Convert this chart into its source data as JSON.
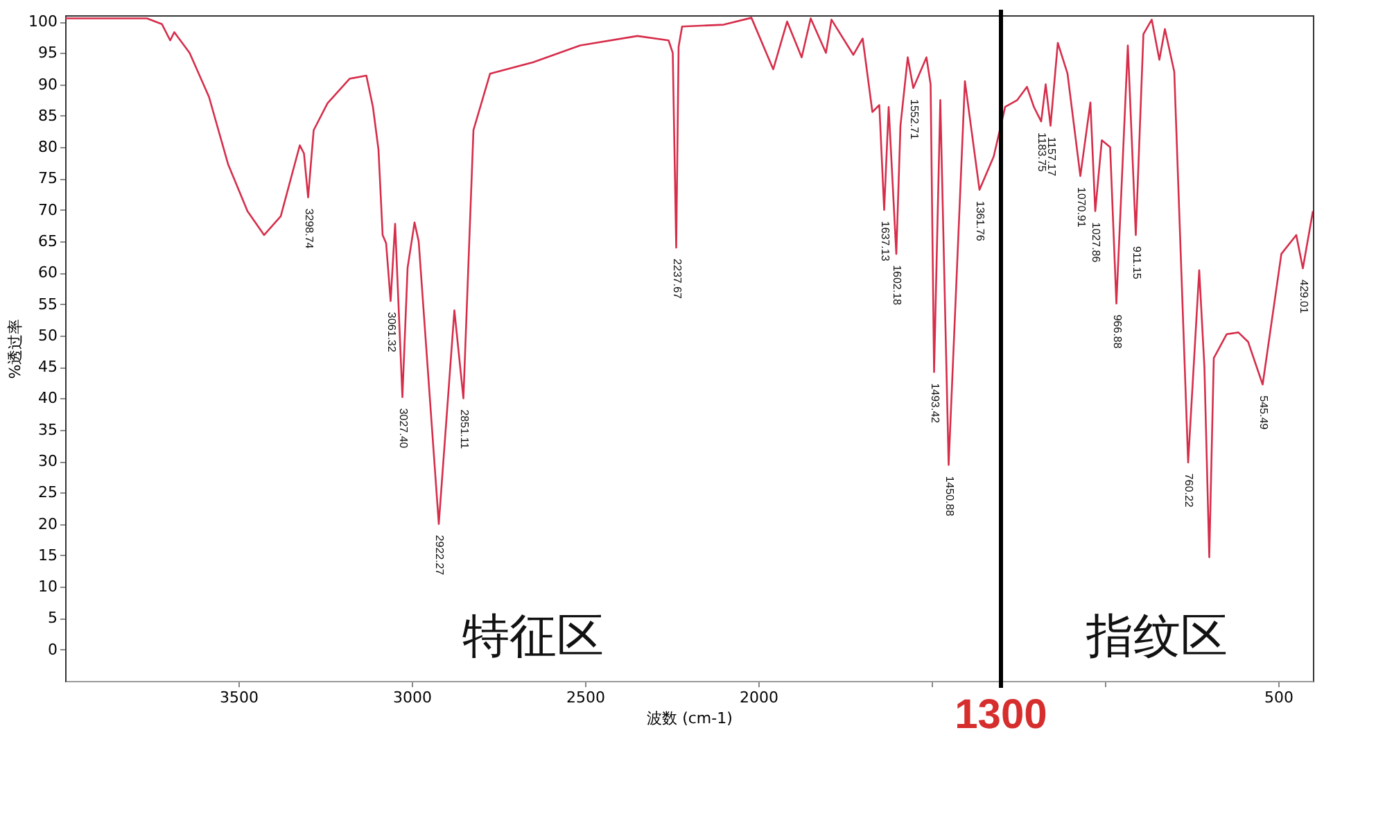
{
  "chart_data": {
    "type": "line",
    "xlabel": "波数 (cm-1)",
    "ylabel": "%透过率",
    "xlim": [
      4000,
      400
    ],
    "ylim": [
      -5,
      101
    ],
    "xticks": [
      3500,
      3000,
      2500,
      2000,
      {
        "value": 1500,
        "label": null
      },
      {
        "value": 1000,
        "label": null
      },
      500
    ],
    "yticks": [
      0,
      5,
      10,
      15,
      20,
      25,
      30,
      35,
      40,
      45,
      50,
      55,
      60,
      65,
      70,
      75,
      80,
      85,
      90,
      95,
      100
    ],
    "grid": false,
    "series": [
      {
        "color": "#d62d4a",
        "x": [
          4000,
          3764,
          3721,
          3697,
          3685,
          3641,
          3585,
          3530,
          3474,
          3426,
          3378,
          3323,
          3311,
          3299,
          3283,
          3243,
          3179,
          3131,
          3112,
          3096,
          3084,
          3074,
          3061,
          3048,
          3027,
          3012,
          2992,
          2980,
          2922,
          2877,
          2851,
          2822,
          2774,
          2651,
          2514,
          2349,
          2259,
          2247,
          2237,
          2230,
          2220,
          2100,
          2020,
          1957,
          1917,
          1875,
          1849,
          1805,
          1789,
          1726,
          1699,
          1671,
          1651,
          1637,
          1624,
          1602,
          1590,
          1569,
          1553,
          1515,
          1503,
          1493,
          1475,
          1451,
          1404,
          1362,
          1321,
          1288,
          1253,
          1225,
          1205,
          1184,
          1171,
          1157,
          1136,
          1108,
          1071,
          1042,
          1028,
          1009,
          985,
          967,
          934,
          911,
          889,
          865,
          843,
          827,
          800,
          760,
          728,
          713,
          699,
          686,
          649,
          615,
          587,
          545,
          491,
          448,
          429,
          400
        ],
        "values": [
          100.5,
          100.5,
          99.6,
          97,
          98.3,
          95,
          88,
          77.3,
          69.8,
          66,
          69,
          80.3,
          79,
          72,
          82.7,
          87,
          90.9,
          91.4,
          86.4,
          79.6,
          66,
          64.7,
          55.5,
          67.8,
          40.2,
          60.8,
          68,
          65,
          20,
          54,
          40,
          82.7,
          91.7,
          93.5,
          96.2,
          97.7,
          97,
          95,
          64,
          96,
          99.2,
          99.5,
          100.6,
          92.4,
          100,
          94.3,
          100.5,
          95,
          100.3,
          94.7,
          97.3,
          85.6,
          86.7,
          70,
          86.4,
          63,
          83.4,
          94.3,
          89.4,
          94.3,
          90,
          44.2,
          87.5,
          29.4,
          90.5,
          73.2,
          78.5,
          86.4,
          87.5,
          89.6,
          86.4,
          84.1,
          90,
          83.4,
          96.6,
          91.7,
          75.4,
          87.1,
          69.8,
          81.1,
          80,
          55.1,
          96.2,
          66,
          98,
          100.3,
          93.9,
          98.8,
          92,
          29.8,
          60.4,
          44.9,
          14.7,
          46.4,
          50.2,
          50.5,
          49,
          42.2,
          63,
          66,
          60.7,
          69.8
        ]
      }
    ],
    "annotations": [
      {
        "text": "3298.74",
        "x": 3299,
        "y": 72
      },
      {
        "text": "3061.32",
        "x": 3061,
        "y": 55.5
      },
      {
        "text": "3027.40",
        "x": 3027,
        "y": 40.2
      },
      {
        "text": "2922.27",
        "x": 2922,
        "y": 20
      },
      {
        "text": "2851.11",
        "x": 2851,
        "y": 40
      },
      {
        "text": "2237.67",
        "x": 2237,
        "y": 64
      },
      {
        "text": "1637.13",
        "x": 1637,
        "y": 70
      },
      {
        "text": "1602.18",
        "x": 1602,
        "y": 63
      },
      {
        "text": "1552.71",
        "x": 1553,
        "y": 89.4
      },
      {
        "text": "1493.42",
        "x": 1493,
        "y": 44.2
      },
      {
        "text": "1450.88",
        "x": 1451,
        "y": 29.4
      },
      {
        "text": "1361.76",
        "x": 1362,
        "y": 73.2
      },
      {
        "text": "1183.75",
        "x": 1184,
        "y": 84.1
      },
      {
        "text": "1157.17",
        "x": 1157,
        "y": 83.4
      },
      {
        "text": "1070.91",
        "x": 1071,
        "y": 75.4
      },
      {
        "text": "1027.86",
        "x": 1028,
        "y": 69.8
      },
      {
        "text": "966.88",
        "x": 967,
        "y": 55.1
      },
      {
        "text": "911.15",
        "x": 911,
        "y": 66
      },
      {
        "text": "760.22",
        "x": 760,
        "y": 29.8
      },
      {
        "text": "545.49",
        "x": 545,
        "y": 42.2
      },
      {
        "text": "429.01",
        "x": 429,
        "y": 60.7
      },
      "特征区",
      "指纹区"
    ],
    "ref_lines": [
      {
        "axis": "x",
        "value": 1300,
        "label": "1300",
        "color": "#000000"
      }
    ]
  }
}
